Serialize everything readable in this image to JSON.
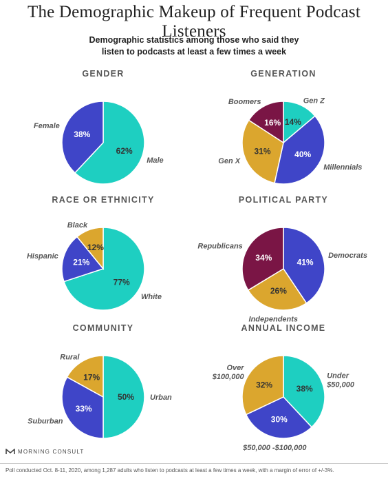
{
  "title": "The Demographic Makeup of Frequent Podcast Listeners",
  "subtitle_line1": "Demographic statistics among those who said they",
  "subtitle_line2": "listen to podcasts at least a few times a week",
  "colors": {
    "teal": "#1ecfc1",
    "blue": "#3f45c8",
    "gold": "#dba62e",
    "maroon": "#7a1545"
  },
  "chart_data": [
    {
      "type": "pie",
      "title": "GENDER",
      "slices": [
        {
          "label": "Male",
          "value": 62,
          "pct_label": "62%",
          "color": "#1ecfc1"
        },
        {
          "label": "Female",
          "value": 38,
          "pct_label": "38%",
          "color": "#3f45c8"
        }
      ]
    },
    {
      "type": "pie",
      "title": "GENERATION",
      "slices": [
        {
          "label": "Gen Z",
          "value": 14,
          "pct_label": "14%",
          "color": "#1ecfc1"
        },
        {
          "label": "Millennials",
          "value": 40,
          "pct_label": "40%",
          "color": "#3f45c8"
        },
        {
          "label": "Gen X",
          "value": 31,
          "pct_label": "31%",
          "color": "#dba62e"
        },
        {
          "label": "Boomers",
          "value": 16,
          "pct_label": "16%",
          "color": "#7a1545"
        }
      ]
    },
    {
      "type": "pie",
      "title": "RACE OR ETHNICITY",
      "slices": [
        {
          "label": "White",
          "value": 77,
          "pct_label": "77%",
          "color": "#1ecfc1"
        },
        {
          "label": "Hispanic",
          "value": 21,
          "pct_label": "21%",
          "color": "#3f45c8"
        },
        {
          "label": "Black",
          "value": 12,
          "pct_label": "12%",
          "color": "#dba62e"
        }
      ]
    },
    {
      "type": "pie",
      "title": "POLITICAL PARTY",
      "slices": [
        {
          "label": "Democrats",
          "value": 41,
          "pct_label": "41%",
          "color": "#3f45c8"
        },
        {
          "label": "Independents",
          "value": 26,
          "pct_label": "26%",
          "color": "#dba62e"
        },
        {
          "label": "Republicans",
          "value": 34,
          "pct_label": "34%",
          "color": "#7a1545"
        }
      ]
    },
    {
      "type": "pie",
      "title": "COMMUNITY",
      "slices": [
        {
          "label": "Urban",
          "value": 50,
          "pct_label": "50%",
          "color": "#1ecfc1"
        },
        {
          "label": "Suburban",
          "value": 33,
          "pct_label": "33%",
          "color": "#3f45c8"
        },
        {
          "label": "Rural",
          "value": 17,
          "pct_label": "17%",
          "color": "#dba62e"
        }
      ]
    },
    {
      "type": "pie",
      "title": "ANNUAL INCOME",
      "slices": [
        {
          "label": "Under\n$50,000",
          "value": 38,
          "pct_label": "38%",
          "color": "#1ecfc1"
        },
        {
          "label": "$50,000 -$100,000",
          "value": 30,
          "pct_label": "30%",
          "color": "#3f45c8"
        },
        {
          "label": "Over\n$100,000",
          "value": 32,
          "pct_label": "32%",
          "color": "#dba62e"
        }
      ]
    }
  ],
  "brand": "MORNING CONSULT",
  "footnote": "Poll conducted Oct. 8-11, 2020, among 1,287 adults who listen to podcasts at least a few times a week, with a margin of error of +/-3%."
}
